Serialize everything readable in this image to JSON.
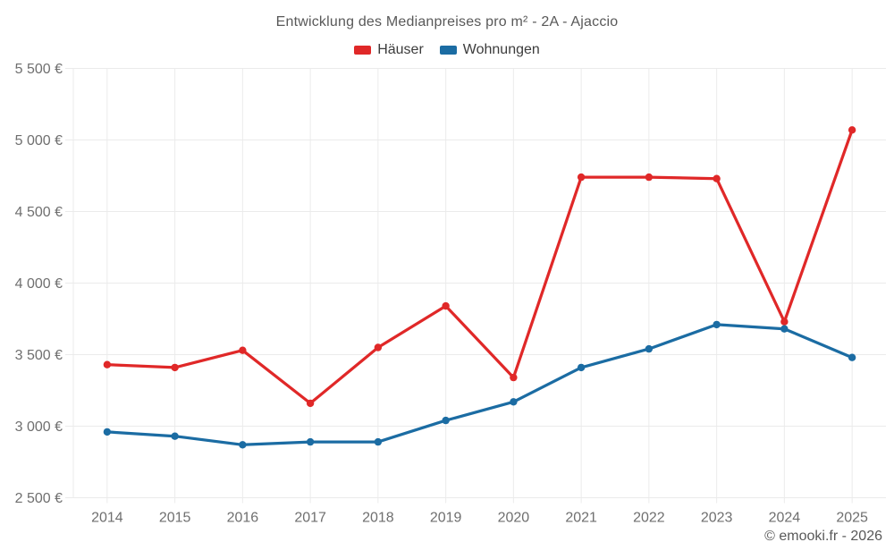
{
  "chart": {
    "title": "Entwicklung des Medianpreises pro m² - 2A - Ajaccio"
  },
  "footer": {
    "copyright": "© emooki.fr - 2026"
  },
  "chart_data": {
    "type": "line",
    "title": "Entwicklung des Medianpreises pro m² - 2A - Ajaccio",
    "xlabel": "",
    "ylabel": "",
    "categories": [
      "2014",
      "2015",
      "2016",
      "2017",
      "2018",
      "2019",
      "2020",
      "2021",
      "2022",
      "2023",
      "2024",
      "2025"
    ],
    "series": [
      {
        "key": "haeuser",
        "name": "Häuser",
        "color": "#e02828",
        "values": [
          3430,
          3410,
          3530,
          3160,
          3550,
          3840,
          3340,
          4740,
          4740,
          4730,
          3730,
          5070
        ]
      },
      {
        "key": "wohnungen",
        "name": "Wohnungen",
        "color": "#1b6ca3",
        "values": [
          2960,
          2930,
          2870,
          2890,
          2890,
          3040,
          3170,
          3410,
          3540,
          3710,
          3680,
          3480
        ]
      }
    ],
    "ylim": [
      2500,
      5500
    ],
    "yticks": [
      {
        "value": 2500,
        "label": "2 500 €"
      },
      {
        "value": 3000,
        "label": "3 000 €"
      },
      {
        "value": 3500,
        "label": "3 500 €"
      },
      {
        "value": 4000,
        "label": "4 000 €"
      },
      {
        "value": 4500,
        "label": "4 500 €"
      },
      {
        "value": 5000,
        "label": "5 000 €"
      },
      {
        "value": 5500,
        "label": "5 500 €"
      }
    ],
    "grid": true,
    "legend_position": "top",
    "grid_color": "#ebebeb",
    "axis_text_color": "#6f6f6f"
  }
}
